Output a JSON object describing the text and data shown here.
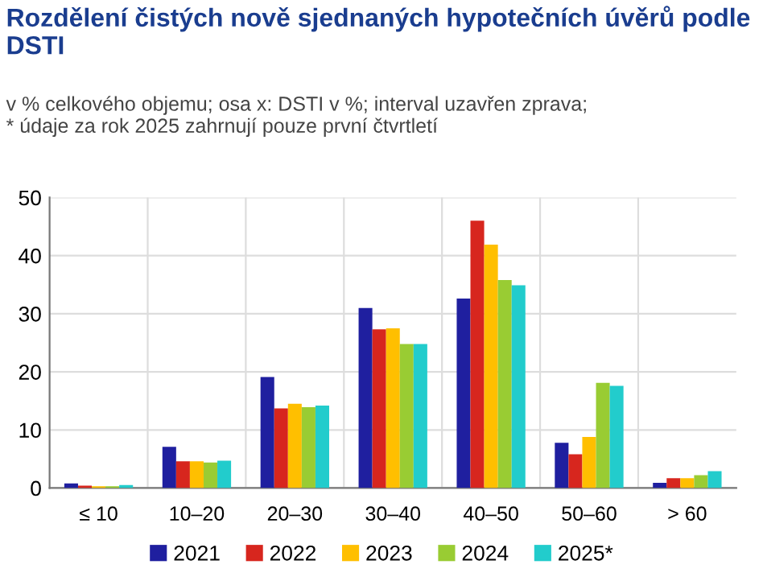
{
  "chart_data": {
    "type": "bar",
    "title": "Rozdělení čistých nově sjednaných hypotečních úvěrů podle DSTI",
    "subtitle": "v % celkového objemu; osa x: DSTI v %; interval uzavřen zprava;\n* údaje za rok 2025 zahrnují pouze první čtvrtletí",
    "categories": [
      "≤ 10",
      "10–20",
      "20–30",
      "30–40",
      "40–50",
      "50–60",
      "> 60"
    ],
    "series": [
      {
        "name": "2021",
        "color": "#1f1f9f",
        "values": [
          0.8,
          7.1,
          19.1,
          31.0,
          32.6,
          7.8,
          0.9
        ]
      },
      {
        "name": "2022",
        "color": "#d7261e",
        "values": [
          0.4,
          4.6,
          13.7,
          27.3,
          46.0,
          5.8,
          1.7
        ]
      },
      {
        "name": "2023",
        "color": "#ffbf00",
        "values": [
          0.3,
          4.6,
          14.5,
          27.5,
          41.9,
          8.8,
          1.7
        ]
      },
      {
        "name": "2024",
        "color": "#99cc33",
        "values": [
          0.3,
          4.4,
          13.9,
          24.8,
          35.8,
          18.1,
          2.2
        ]
      },
      {
        "name": "2025*",
        "color": "#22cccc",
        "values": [
          0.5,
          4.7,
          14.2,
          24.8,
          34.9,
          17.6,
          2.9
        ]
      }
    ],
    "ylim": [
      0,
      50
    ],
    "yticks": [
      0,
      10,
      20,
      30,
      40,
      50
    ],
    "grid": true,
    "legend": "bottom"
  }
}
